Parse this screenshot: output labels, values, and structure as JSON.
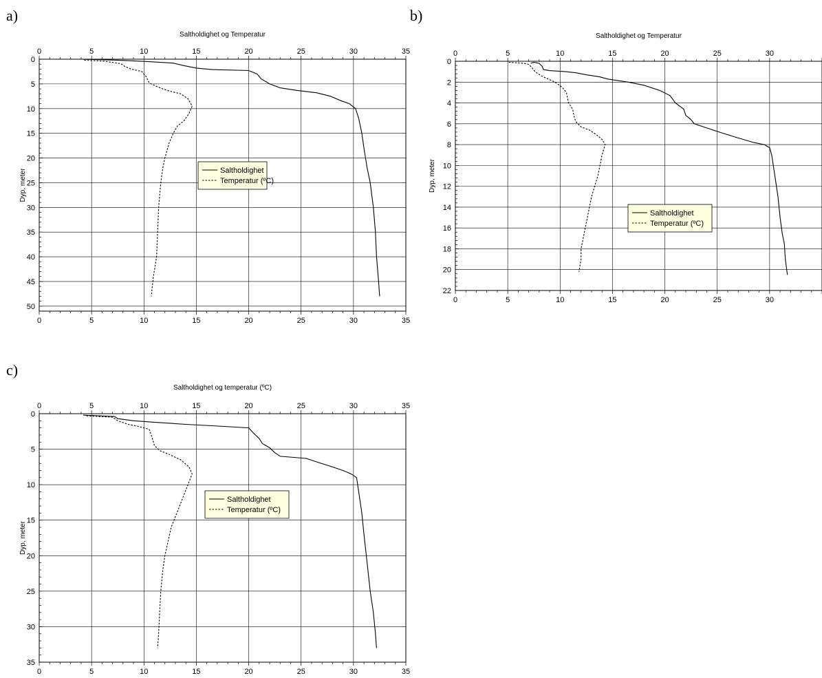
{
  "panels": [
    {
      "letter": "a)"
    },
    {
      "letter": "b)"
    },
    {
      "letter": "c)"
    }
  ],
  "chart_data": [
    {
      "type": "line",
      "title": "Saltholdighet og Temperatur",
      "xlabel": "",
      "ylabel": "Dyp, meter",
      "xlim": [
        0,
        35
      ],
      "ylim": [
        0,
        51
      ],
      "y_inverted": true,
      "x_axis_top_and_bottom": true,
      "x_ticks": [
        0,
        5,
        10,
        15,
        20,
        25,
        30,
        35
      ],
      "y_ticks": [
        0,
        5,
        10,
        15,
        20,
        25,
        30,
        35,
        40,
        45,
        50
      ],
      "grid": true,
      "legend_position": "center-right",
      "series": [
        {
          "name": "Saltholdighet",
          "style": "solid",
          "points": [
            [
              4.0,
              0.0
            ],
            [
              7.5,
              0.2
            ],
            [
              10.5,
              0.5
            ],
            [
              12.8,
              0.8
            ],
            [
              13.8,
              1.3
            ],
            [
              15.0,
              1.8
            ],
            [
              16.5,
              2.1
            ],
            [
              20.0,
              2.3
            ],
            [
              20.8,
              3.0
            ],
            [
              21.2,
              4.0
            ],
            [
              22.0,
              5.0
            ],
            [
              23.0,
              5.8
            ],
            [
              24.5,
              6.3
            ],
            [
              26.5,
              6.8
            ],
            [
              27.8,
              7.5
            ],
            [
              28.8,
              8.4
            ],
            [
              29.6,
              9.0
            ],
            [
              30.2,
              10.0
            ],
            [
              30.5,
              12.0
            ],
            [
              30.8,
              15.0
            ],
            [
              31.0,
              18.0
            ],
            [
              31.3,
              22.0
            ],
            [
              31.6,
              25.0
            ],
            [
              31.9,
              30.0
            ],
            [
              32.1,
              35.0
            ],
            [
              32.2,
              40.0
            ],
            [
              32.4,
              45.0
            ],
            [
              32.5,
              48.0
            ]
          ]
        },
        {
          "name": "Temperatur (ºC)",
          "style": "dashed",
          "points": [
            [
              4.3,
              0.2
            ],
            [
              6.2,
              0.4
            ],
            [
              7.8,
              0.9
            ],
            [
              8.2,
              1.5
            ],
            [
              8.8,
              2.0
            ],
            [
              9.8,
              2.5
            ],
            [
              10.2,
              3.5
            ],
            [
              10.5,
              4.8
            ],
            [
              11.2,
              5.5
            ],
            [
              11.8,
              6.0
            ],
            [
              12.5,
              6.5
            ],
            [
              13.5,
              7.0
            ],
            [
              14.2,
              8.0
            ],
            [
              14.6,
              9.5
            ],
            [
              14.3,
              11.0
            ],
            [
              13.8,
              12.5
            ],
            [
              13.2,
              13.5
            ],
            [
              12.8,
              15.0
            ],
            [
              12.4,
              17.0
            ],
            [
              12.0,
              20.0
            ],
            [
              11.8,
              22.0
            ],
            [
              11.6,
              25.0
            ],
            [
              11.4,
              30.0
            ],
            [
              11.3,
              35.0
            ],
            [
              11.2,
              40.0
            ],
            [
              10.9,
              44.0
            ],
            [
              10.7,
              48.0
            ]
          ]
        }
      ]
    },
    {
      "type": "line",
      "title": "Saltholdighet og Temperatur",
      "xlabel": "",
      "ylabel": "Dyp, meter",
      "xlim": [
        0,
        35
      ],
      "ylim": [
        0,
        22
      ],
      "y_inverted": true,
      "x_axis_top_and_bottom": true,
      "x_ticks_top": [
        0,
        5,
        10,
        15,
        20,
        25,
        30
      ],
      "x_ticks_bottom": [
        0,
        5,
        10,
        15,
        20,
        25,
        30
      ],
      "y_ticks": [
        0,
        2,
        4,
        6,
        8,
        10,
        12,
        14,
        16,
        18,
        20,
        22
      ],
      "grid": true,
      "legend_position": "center-right",
      "series": [
        {
          "name": "Saltholdighet",
          "style": "solid",
          "points": [
            [
              7.2,
              0.2
            ],
            [
              7.5,
              0.1
            ],
            [
              8.0,
              0.2
            ],
            [
              8.3,
              0.5
            ],
            [
              8.4,
              0.8
            ],
            [
              9.0,
              0.9
            ],
            [
              10.5,
              1.0
            ],
            [
              11.5,
              1.1
            ],
            [
              12.5,
              1.3
            ],
            [
              13.8,
              1.5
            ],
            [
              14.5,
              1.7
            ],
            [
              16.5,
              2.0
            ],
            [
              18.0,
              2.3
            ],
            [
              19.5,
              2.8
            ],
            [
              20.5,
              3.3
            ],
            [
              21.0,
              4.0
            ],
            [
              21.8,
              4.6
            ],
            [
              22.0,
              5.2
            ],
            [
              22.5,
              5.6
            ],
            [
              22.8,
              6.0
            ],
            [
              24.0,
              6.4
            ],
            [
              25.5,
              6.9
            ],
            [
              26.8,
              7.3
            ],
            [
              28.5,
              7.8
            ],
            [
              29.5,
              8.0
            ],
            [
              30.0,
              8.3
            ],
            [
              30.2,
              9.0
            ],
            [
              30.5,
              11.0
            ],
            [
              30.8,
              13.0
            ],
            [
              31.0,
              15.0
            ],
            [
              31.2,
              16.5
            ],
            [
              31.4,
              17.5
            ],
            [
              31.5,
              19.0
            ],
            [
              31.7,
              20.5
            ]
          ]
        },
        {
          "name": "Temperatur (ºC)",
          "style": "dashed",
          "points": [
            [
              5.1,
              0.1
            ],
            [
              6.5,
              0.2
            ],
            [
              7.0,
              0.3
            ],
            [
              7.3,
              0.6
            ],
            [
              7.6,
              1.0
            ],
            [
              8.2,
              1.4
            ],
            [
              9.5,
              2.0
            ],
            [
              10.2,
              2.5
            ],
            [
              10.6,
              3.0
            ],
            [
              10.8,
              4.0
            ],
            [
              11.2,
              4.6
            ],
            [
              11.3,
              5.2
            ],
            [
              11.5,
              5.8
            ],
            [
              12.0,
              6.3
            ],
            [
              12.8,
              6.6
            ],
            [
              13.4,
              7.0
            ],
            [
              14.0,
              7.5
            ],
            [
              14.3,
              8.0
            ],
            [
              14.0,
              9.0
            ],
            [
              13.8,
              10.0
            ],
            [
              13.6,
              11.0
            ],
            [
              13.3,
              12.0
            ],
            [
              13.0,
              13.0
            ],
            [
              12.8,
              14.0
            ],
            [
              12.6,
              15.0
            ],
            [
              12.4,
              16.0
            ],
            [
              12.2,
              17.0
            ],
            [
              12.0,
              18.0
            ],
            [
              12.0,
              19.0
            ],
            [
              11.8,
              20.2
            ]
          ]
        }
      ]
    },
    {
      "type": "line",
      "title": "Saltholdighet og temperatur (ºC)",
      "xlabel": "",
      "ylabel": "Dyp, meter",
      "xlim": [
        0,
        35
      ],
      "ylim": [
        0,
        35
      ],
      "y_inverted": true,
      "x_axis_top_and_bottom": true,
      "x_ticks": [
        0,
        5,
        10,
        15,
        20,
        25,
        30,
        35
      ],
      "y_ticks": [
        0,
        5,
        10,
        15,
        20,
        25,
        30,
        35
      ],
      "grid": true,
      "legend_position": "center",
      "series": [
        {
          "name": "Saltholdighet",
          "style": "solid",
          "points": [
            [
              4.2,
              0.2
            ],
            [
              7.2,
              0.4
            ],
            [
              7.5,
              0.7
            ],
            [
              9.0,
              1.0
            ],
            [
              11.0,
              1.2
            ],
            [
              14.0,
              1.5
            ],
            [
              16.5,
              1.7
            ],
            [
              20.0,
              2.0
            ],
            [
              20.5,
              2.8
            ],
            [
              21.0,
              3.5
            ],
            [
              21.3,
              4.2
            ],
            [
              22.0,
              4.8
            ],
            [
              22.5,
              5.5
            ],
            [
              23.0,
              6.0
            ],
            [
              25.5,
              6.3
            ],
            [
              26.5,
              6.8
            ],
            [
              28.0,
              7.5
            ],
            [
              29.0,
              8.0
            ],
            [
              29.8,
              8.5
            ],
            [
              30.3,
              9.0
            ],
            [
              30.5,
              11.0
            ],
            [
              30.8,
              14.0
            ],
            [
              31.0,
              17.0
            ],
            [
              31.3,
              21.0
            ],
            [
              31.6,
              25.0
            ],
            [
              31.9,
              28.0
            ],
            [
              32.1,
              31.0
            ],
            [
              32.2,
              33.0
            ]
          ]
        },
        {
          "name": "Temperatur (ºC)",
          "style": "dashed",
          "points": [
            [
              4.5,
              0.3
            ],
            [
              7.0,
              0.5
            ],
            [
              7.5,
              1.0
            ],
            [
              8.5,
              1.5
            ],
            [
              9.5,
              1.8
            ],
            [
              10.5,
              2.2
            ],
            [
              10.8,
              3.5
            ],
            [
              11.0,
              4.5
            ],
            [
              11.5,
              5.2
            ],
            [
              12.5,
              5.8
            ],
            [
              13.5,
              6.5
            ],
            [
              14.3,
              7.5
            ],
            [
              14.6,
              8.5
            ],
            [
              14.2,
              10.0
            ],
            [
              13.8,
              11.5
            ],
            [
              13.4,
              13.0
            ],
            [
              13.0,
              14.5
            ],
            [
              12.6,
              16.0
            ],
            [
              12.3,
              18.0
            ],
            [
              12.0,
              20.0
            ],
            [
              11.8,
              22.0
            ],
            [
              11.6,
              25.0
            ],
            [
              11.5,
              28.0
            ],
            [
              11.4,
              31.0
            ],
            [
              11.3,
              33.0
            ]
          ]
        }
      ]
    }
  ]
}
